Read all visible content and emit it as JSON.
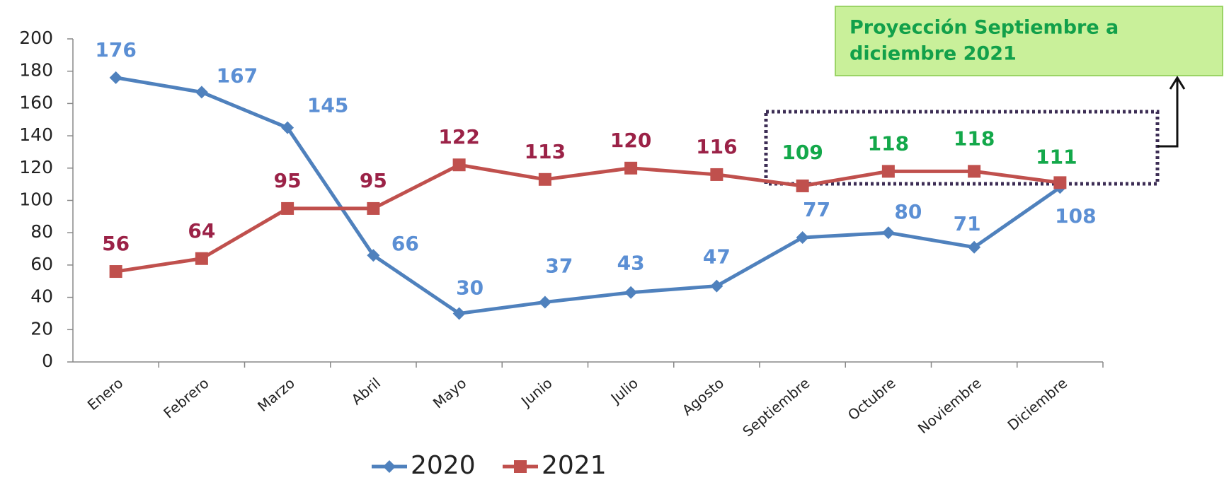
{
  "chart_data": {
    "type": "line",
    "categories": [
      "Enero",
      "Febrero",
      "Marzo",
      "Abril",
      "Mayo",
      "Junio",
      "Julio",
      "Agosto",
      "Septiembre",
      "Octubre",
      "Noviembre",
      "Diciembre"
    ],
    "series": [
      {
        "name": "2020",
        "color": "#4f81bd",
        "marker": "diamond",
        "label_colors": [
          "#5b8fd4",
          "#5b8fd4",
          "#5b8fd4",
          "#5b8fd4",
          "#5b8fd4",
          "#5b8fd4",
          "#5b8fd4",
          "#5b8fd4",
          "#5b8fd4",
          "#5b8fd4",
          "#5b8fd4",
          "#5b8fd4"
        ],
        "values": [
          176,
          167,
          145,
          66,
          30,
          37,
          43,
          47,
          77,
          80,
          71,
          108
        ]
      },
      {
        "name": "2021",
        "color": "#c0504d",
        "marker": "square",
        "label_colors": [
          "#9b2247",
          "#9b2247",
          "#9b2247",
          "#9b2247",
          "#9b2247",
          "#9b2247",
          "#9b2247",
          "#9b2247",
          "#13a84a",
          "#13a84a",
          "#13a84a",
          "#13a84a"
        ],
        "values": [
          56,
          64,
          95,
          95,
          122,
          113,
          120,
          116,
          109,
          118,
          118,
          111
        ]
      }
    ],
    "ylim": [
      0,
      200
    ],
    "yticks": [
      0,
      20,
      40,
      60,
      80,
      100,
      120,
      140,
      160,
      180,
      200
    ],
    "annotation": [
      "Proyección Septiembre a",
      "diciembre 2021"
    ],
    "legend": "bottom"
  }
}
